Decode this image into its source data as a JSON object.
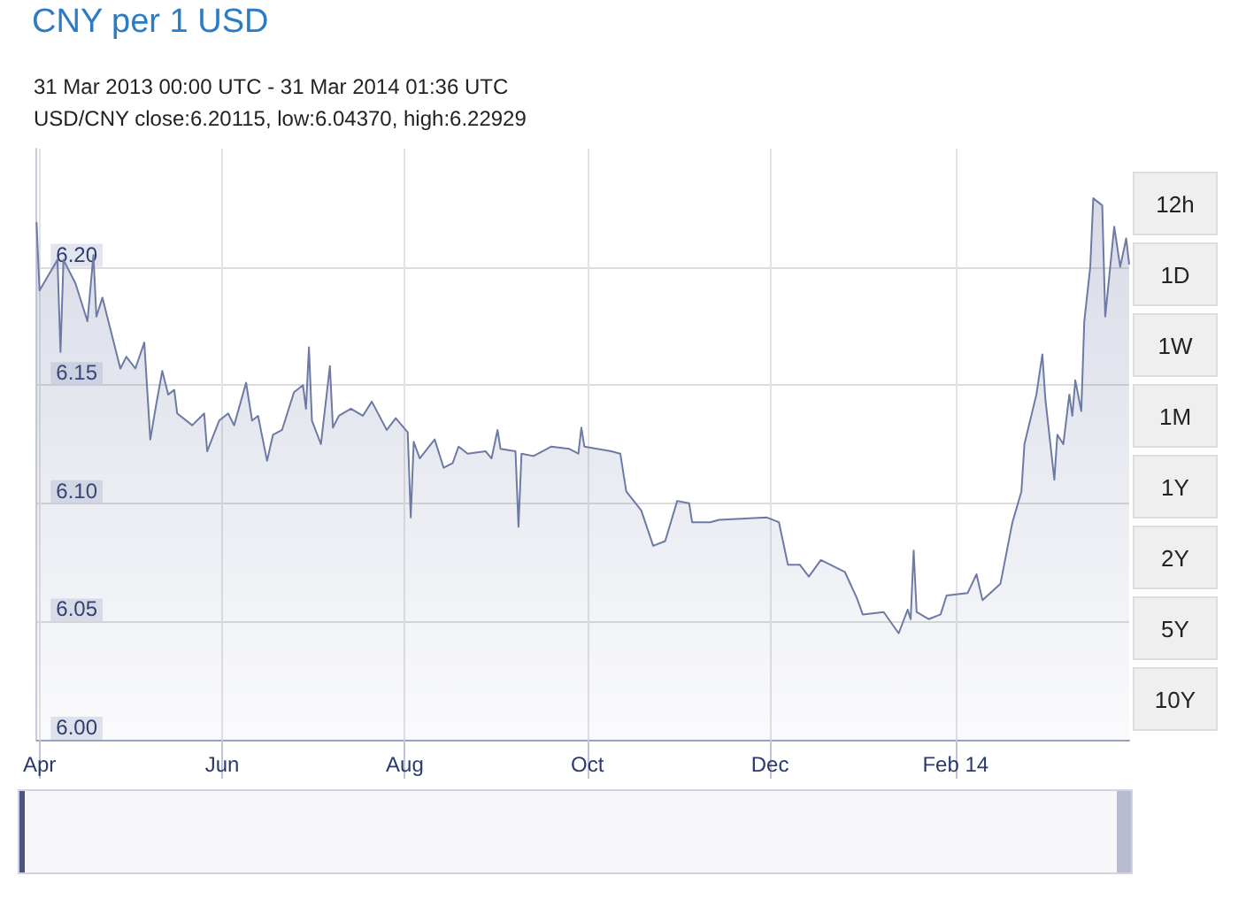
{
  "chart_data": {
    "type": "area",
    "title": "CNY per 1 USD",
    "subtitle": "31 Mar 2013 00:00 UTC - 31 Mar 2014 01:36 UTC",
    "annotations": [
      "USD/CNY close:6.20115, low:6.04370, high:6.22929",
      "12h",
      "1D",
      "1W",
      "1M",
      "1Y",
      "2Y",
      "5Y",
      "10Y"
    ],
    "x": [
      "2013-03-31",
      "2013-04-01",
      "2013-04-07",
      "2013-04-08",
      "2013-04-09",
      "2013-04-13",
      "2013-04-17",
      "2013-04-19",
      "2013-04-20",
      "2013-04-22",
      "2013-04-24",
      "2013-04-28",
      "2013-04-30",
      "2013-05-03",
      "2013-05-06",
      "2013-05-08",
      "2013-05-10",
      "2013-05-12",
      "2013-05-14",
      "2013-05-16",
      "2013-05-17",
      "2013-05-22",
      "2013-05-26",
      "2013-05-27",
      "2013-05-31",
      "2013-06-03",
      "2013-06-05",
      "2013-06-09",
      "2013-06-11",
      "2013-06-13",
      "2013-06-16",
      "2013-06-18",
      "2013-06-21",
      "2013-06-25",
      "2013-06-28",
      "2013-06-29",
      "2013-06-30",
      "2013-07-01",
      "2013-07-04",
      "2013-07-07",
      "2013-07-08",
      "2013-07-10",
      "2013-07-14",
      "2013-07-18",
      "2013-07-21",
      "2013-07-26",
      "2013-07-29",
      "2013-08-02",
      "2013-08-03",
      "2013-08-04",
      "2013-08-06",
      "2013-08-11",
      "2013-08-14",
      "2013-08-17",
      "2013-08-19",
      "2013-08-22",
      "2013-08-28",
      "2013-08-30",
      "2013-09-01",
      "2013-09-02",
      "2013-09-07",
      "2013-09-08",
      "2013-09-09",
      "2013-09-13",
      "2013-09-19",
      "2013-09-25",
      "2013-09-28",
      "2013-09-29",
      "2013-09-30",
      "2013-10-09",
      "2013-10-12",
      "2013-10-14",
      "2013-10-19",
      "2013-10-23",
      "2013-10-27",
      "2013-10-31",
      "2013-11-04",
      "2013-11-05",
      "2013-11-11",
      "2013-11-14",
      "2013-11-30",
      "2013-12-04",
      "2013-12-07",
      "2013-12-11",
      "2013-12-14",
      "2013-12-18",
      "2013-12-26",
      "2013-12-30",
      "2014-01-01",
      "2014-01-08",
      "2014-01-13",
      "2014-01-16",
      "2014-01-17",
      "2014-01-18",
      "2014-01-19",
      "2014-01-23",
      "2014-01-27",
      "2014-01-29",
      "2014-02-05",
      "2014-02-08",
      "2014-02-10",
      "2014-02-16",
      "2014-02-20",
      "2014-02-23",
      "2014-02-24",
      "2014-02-28",
      "2014-03-02",
      "2014-03-03",
      "2014-03-06",
      "2014-03-07",
      "2014-03-09",
      "2014-03-11",
      "2014-03-12",
      "2014-03-13",
      "2014-03-15",
      "2014-03-16",
      "2014-03-18",
      "2014-03-19",
      "2014-03-22",
      "2014-03-23",
      "2014-03-26",
      "2014-03-28",
      "2014-03-30",
      "2014-03-31"
    ],
    "series": [
      {
        "color": "#6d7aa5",
        "values": [
          6.219,
          6.19,
          6.203,
          6.164,
          6.203,
          6.193,
          6.177,
          6.205,
          6.179,
          6.187,
          6.177,
          6.157,
          6.162,
          6.157,
          6.168,
          6.127,
          6.142,
          6.156,
          6.146,
          6.148,
          6.138,
          6.133,
          6.138,
          6.122,
          6.135,
          6.138,
          6.133,
          6.151,
          6.135,
          6.137,
          6.118,
          6.129,
          6.131,
          6.147,
          6.15,
          6.14,
          6.166,
          6.135,
          6.125,
          6.158,
          6.132,
          6.137,
          6.14,
          6.137,
          6.143,
          6.131,
          6.136,
          6.13,
          6.094,
          6.126,
          6.119,
          6.127,
          6.115,
          6.117,
          6.124,
          6.121,
          6.122,
          6.119,
          6.131,
          6.123,
          6.122,
          6.09,
          6.121,
          6.12,
          6.124,
          6.123,
          6.121,
          6.132,
          6.124,
          6.122,
          6.121,
          6.105,
          6.097,
          6.082,
          6.084,
          6.101,
          6.1,
          6.092,
          6.092,
          6.093,
          6.094,
          6.092,
          6.074,
          6.074,
          6.069,
          6.076,
          6.071,
          6.06,
          6.053,
          6.054,
          6.045,
          6.055,
          6.051,
          6.08,
          6.054,
          6.051,
          6.053,
          6.061,
          6.062,
          6.07,
          6.059,
          6.066,
          6.092,
          6.105,
          6.125,
          6.146,
          6.163,
          6.144,
          6.11,
          6.129,
          6.125,
          6.146,
          6.137,
          6.152,
          6.139,
          6.177,
          6.2,
          6.229,
          6.226,
          6.179,
          6.217,
          6.2,
          6.212,
          6.201
        ]
      }
    ],
    "xlim": [
      "2013-03-31",
      "2014-03-31"
    ],
    "xticks": [
      {
        "value": "2013-04-01",
        "label": "Apr"
      },
      {
        "value": "2013-06-01",
        "label": "Jun"
      },
      {
        "value": "2013-08-01",
        "label": "Aug"
      },
      {
        "value": "2013-10-01",
        "label": "Oct"
      },
      {
        "value": "2013-12-01",
        "label": "Dec"
      },
      {
        "value": "2014-02-01",
        "label": "Feb 14"
      }
    ],
    "ylim": [
      6.0,
      6.25
    ],
    "yticks": [
      {
        "value": 6.0,
        "label": "6.00"
      },
      {
        "value": 6.05,
        "label": "6.05"
      },
      {
        "value": 6.1,
        "label": "6.10"
      },
      {
        "value": 6.15,
        "label": "6.15"
      },
      {
        "value": 6.2,
        "label": "6.20"
      }
    ],
    "grid": true,
    "marker": "none",
    "line_style": "solid"
  }
}
